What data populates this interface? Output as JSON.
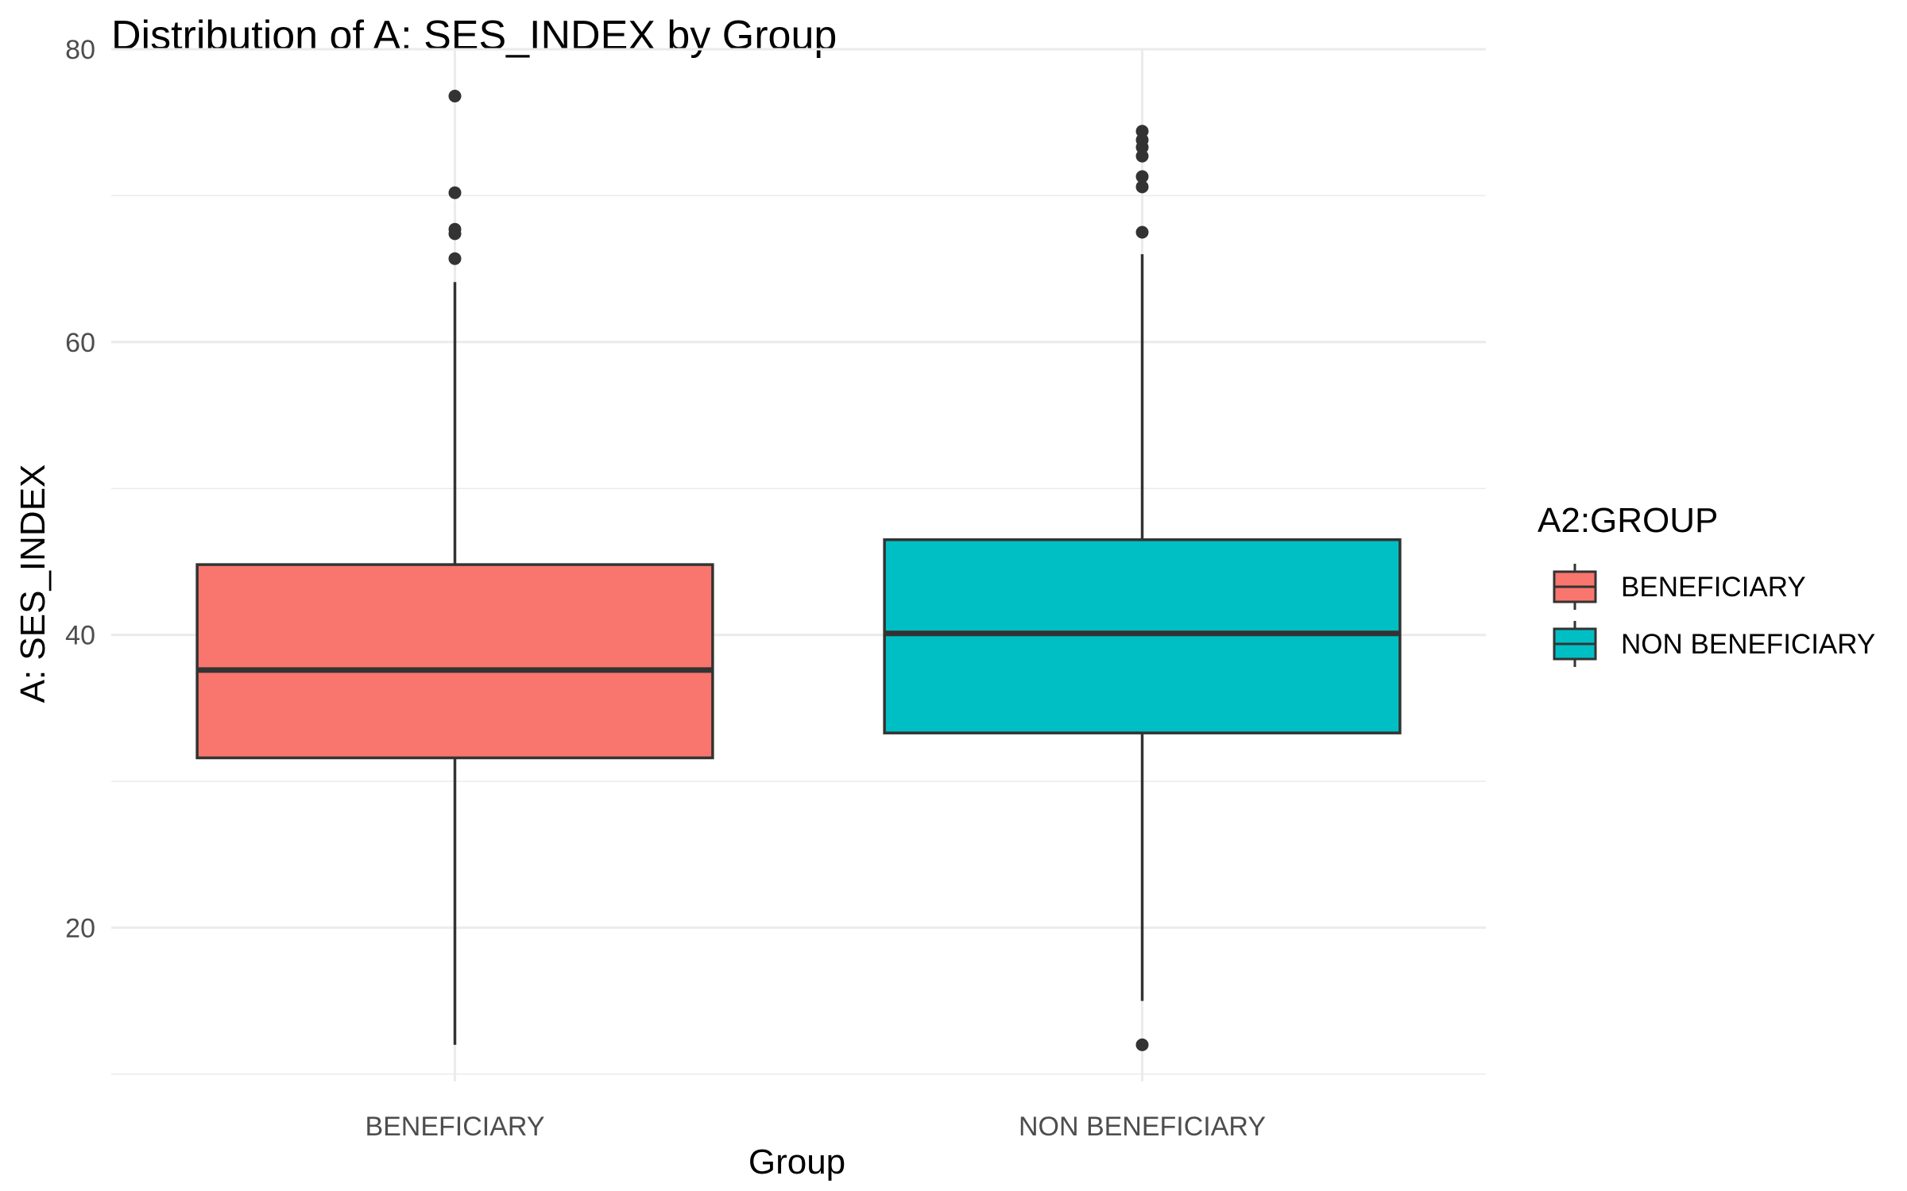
{
  "chart_data": {
    "type": "boxplot",
    "title": "Distribution of A: SES_INDEX by Group",
    "xlabel": "Group",
    "ylabel": "A: SES_INDEX",
    "ylim": [
      9.5,
      80
    ],
    "yticks": [
      20,
      40,
      60,
      80
    ],
    "grid": true,
    "categories": [
      "BENEFICIARY",
      "NON BENEFICIARY"
    ],
    "legend": {
      "title": "A2:GROUP",
      "position": "right",
      "entries": [
        "BENEFICIARY",
        "NON BENEFICIARY"
      ]
    },
    "series": [
      {
        "category": "BENEFICIARY",
        "color": "#F8766D",
        "whisker_low": 12,
        "q1": 31.6,
        "median": 37.6,
        "q3": 44.8,
        "whisker_high": 64.1,
        "outliers": [
          65.7,
          67.4,
          67.7,
          70.2,
          76.8
        ]
      },
      {
        "category": "NON BENEFICIARY",
        "color": "#00BFC4",
        "whisker_low": 15,
        "q1": 33.3,
        "median": 40.1,
        "q3": 46.5,
        "whisker_high": 66,
        "outliers": [
          12,
          67.5,
          70.6,
          71.3,
          72.7,
          73.3,
          73.8,
          74.4
        ]
      }
    ]
  }
}
